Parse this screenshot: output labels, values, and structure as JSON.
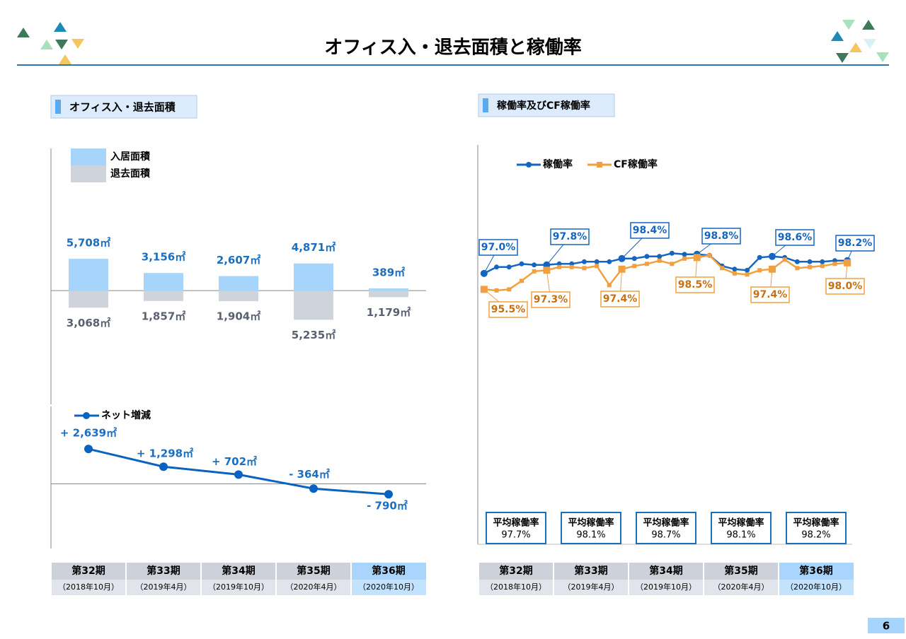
{
  "page": {
    "title": "オフィス入・退去面積と稼働率",
    "page_number": "6"
  },
  "periods": {
    "dates": [
      "（2018年10月）",
      "（2019年4月）",
      "（2019年10月）",
      "（2020年4月）",
      "（2020年10月）"
    ],
    "highlight_index": 4
  },
  "chart_data": [
    {
      "type": "bar",
      "title": "オフィス入・退去面積",
      "categories": [
        "第32期",
        "第33期",
        "第34期",
        "第35期",
        "第36期"
      ],
      "ylim": [
        -20400,
        25500
      ],
      "series": [
        {
          "name": "入居面積",
          "color": "#a6d4fa",
          "label_color": "#1a6fc0",
          "values": [
            5708,
            3156,
            2607,
            4871,
            389
          ],
          "value_labels": [
            "5,708㎡",
            "3,156㎡",
            "2,607㎡",
            "4,871㎡",
            "389㎡"
          ]
        },
        {
          "name": "退去面積",
          "color": "#cfd3dc",
          "label_color": "#5a6272",
          "values": [
            -3068,
            -1857,
            -1904,
            -5235,
            -1179
          ],
          "value_labels": [
            "3,068㎡",
            "1,857㎡",
            "1,904㎡",
            "5,235㎡",
            "1,179㎡"
          ]
        }
      ]
    },
    {
      "type": "line",
      "ylim": [
        -4900,
        5860
      ],
      "series": [
        {
          "name": "ネット増減",
          "color": "#0b63c1",
          "label_color": "#1a6fc0",
          "values": [
            2639,
            1298,
            702,
            -364,
            -790
          ],
          "value_labels": [
            "+ 2,639㎡",
            "+ 1,298㎡",
            "+ 702㎡",
            "- 364㎡",
            "- 790㎡"
          ]
        }
      ]
    },
    {
      "type": "line",
      "title": "稼働率及びCF稼働率",
      "categories": [
        null,
        null,
        null,
        null,
        null,
        null,
        null,
        null,
        null,
        null,
        null,
        null,
        null,
        null,
        null,
        null,
        null,
        null,
        null,
        null,
        null,
        null,
        null,
        null,
        null,
        null,
        null,
        null,
        null,
        null
      ],
      "ylim": [
        71.5,
        109.1
      ],
      "series": [
        {
          "name": "稼働率",
          "color": "#1565c0",
          "label_color": "#1565c0",
          "marker": "circle",
          "values": [
            97.0,
            97.6,
            97.6,
            97.9,
            97.8,
            97.8,
            97.9,
            97.9,
            98.1,
            98.1,
            98.1,
            98.4,
            98.4,
            98.6,
            98.6,
            98.9,
            98.8,
            98.8,
            98.7,
            97.7,
            97.4,
            97.3,
            98.5,
            98.6,
            98.5,
            98.1,
            98.1,
            98.1,
            98.2,
            98.2
          ],
          "value_labels": [
            "97.0%",
            null,
            null,
            null,
            null,
            "97.8%",
            null,
            null,
            null,
            null,
            null,
            "98.4%",
            null,
            null,
            null,
            null,
            null,
            "98.8%",
            null,
            null,
            null,
            null,
            null,
            "98.6%",
            null,
            null,
            null,
            null,
            null,
            "98.2%"
          ]
        },
        {
          "name": "CF稼働率",
          "color": "#f0a040",
          "label_color": "#c87010",
          "marker": "square",
          "values": [
            95.5,
            95.4,
            95.5,
            96.3,
            97.2,
            97.3,
            97.6,
            97.6,
            97.5,
            97.7,
            95.9,
            97.4,
            97.7,
            97.9,
            98.2,
            97.9,
            98.4,
            98.5,
            98.7,
            97.5,
            97.0,
            96.9,
            97.3,
            97.4,
            98.3,
            97.5,
            97.6,
            97.7,
            97.9,
            98.0
          ],
          "value_labels": [
            "95.5%",
            null,
            null,
            null,
            null,
            "97.3%",
            null,
            null,
            null,
            null,
            null,
            "97.4%",
            null,
            null,
            null,
            null,
            null,
            "98.5%",
            null,
            null,
            null,
            null,
            null,
            "97.4%",
            null,
            null,
            null,
            null,
            null,
            "98.0%"
          ]
        }
      ],
      "averages": {
        "label": "平均稼働率",
        "values": [
          97.7,
          98.1,
          98.7,
          98.1,
          98.2
        ],
        "value_labels": [
          "97.7%",
          "98.1%",
          "98.7%",
          "98.1%",
          "98.2%"
        ]
      }
    }
  ]
}
